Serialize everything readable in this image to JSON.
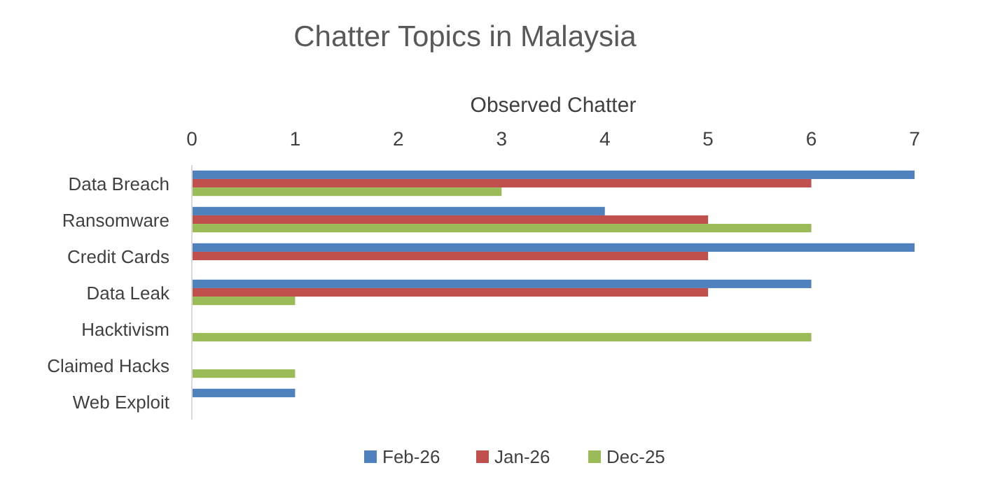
{
  "chart_data": {
    "type": "bar",
    "orientation": "horizontal",
    "title": "Chatter Topics in Malaysia",
    "xlabel": "Observed Chatter",
    "categories": [
      "Data Breach",
      "Ransomware",
      "Credit Cards",
      "Data Leak",
      "Hacktivism",
      "Claimed Hacks",
      "Web Exploit"
    ],
    "series": [
      {
        "name": "Feb-26",
        "color": "#4f81bd",
        "values": [
          7,
          4,
          7,
          6,
          null,
          null,
          1
        ]
      },
      {
        "name": "Jan-26",
        "color": "#c0504d",
        "values": [
          6,
          5,
          5,
          5,
          null,
          null,
          null
        ]
      },
      {
        "name": "Dec-25",
        "color": "#9bbb59",
        "values": [
          3,
          6,
          null,
          1,
          6,
          1,
          null
        ]
      }
    ],
    "xlim": [
      0,
      7
    ],
    "xticks": [
      0,
      1,
      2,
      3,
      4,
      5,
      6,
      7
    ],
    "grid": false,
    "legend": "bottom"
  }
}
